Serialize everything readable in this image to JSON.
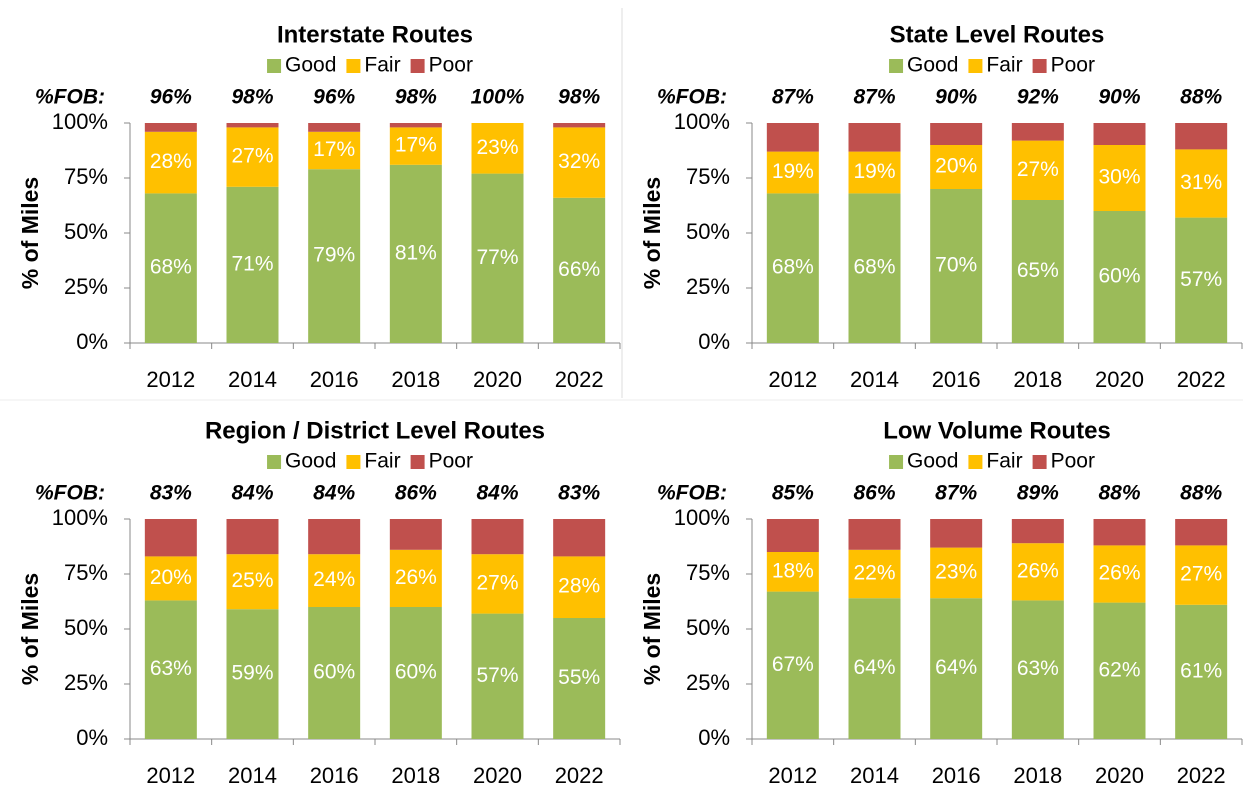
{
  "chart_data": [
    {
      "type": "bar",
      "stacked": true,
      "title": "Interstate Routes",
      "ylabel": "% of Miles",
      "categories": [
        "2012",
        "2014",
        "2016",
        "2018",
        "2020",
        "2022"
      ],
      "fob_label": "%FOB:",
      "fob_labels": [
        "96%",
        "98%",
        "96%",
        "98%",
        "100%",
        "98%"
      ],
      "series": [
        {
          "name": "Good",
          "color": "#9bbb59",
          "values": [
            68,
            71,
            79,
            81,
            77,
            66
          ],
          "value_labels": [
            "68%",
            "71%",
            "79%",
            "81%",
            "77%",
            "66%"
          ]
        },
        {
          "name": "Fair",
          "color": "#ffc000",
          "values": [
            28,
            27,
            17,
            17,
            23,
            32
          ],
          "value_labels": [
            "28%",
            "27%",
            "17%",
            "17%",
            "23%",
            "32%"
          ]
        },
        {
          "name": "Poor",
          "color": "#c0504d",
          "values": [
            4,
            2,
            4,
            2,
            0,
            2
          ]
        }
      ],
      "ylim": [
        0,
        100
      ],
      "yticks": [
        {
          "value": 0,
          "label": "0%"
        },
        {
          "value": 25,
          "label": "25%"
        },
        {
          "value": 50,
          "label": "50%"
        },
        {
          "value": 75,
          "label": "75%"
        },
        {
          "value": 100,
          "label": "100%"
        }
      ]
    },
    {
      "type": "bar",
      "stacked": true,
      "title": "State Level Routes",
      "ylabel": "% of Miles",
      "categories": [
        "2012",
        "2014",
        "2016",
        "2018",
        "2020",
        "2022"
      ],
      "fob_label": "%FOB:",
      "fob_labels": [
        "87%",
        "87%",
        "90%",
        "92%",
        "90%",
        "88%"
      ],
      "series": [
        {
          "name": "Good",
          "color": "#9bbb59",
          "values": [
            68,
            68,
            70,
            65,
            60,
            57
          ],
          "value_labels": [
            "68%",
            "68%",
            "70%",
            "65%",
            "60%",
            "57%"
          ]
        },
        {
          "name": "Fair",
          "color": "#ffc000",
          "values": [
            19,
            19,
            20,
            27,
            30,
            31
          ],
          "value_labels": [
            "19%",
            "19%",
            "20%",
            "27%",
            "30%",
            "31%"
          ]
        },
        {
          "name": "Poor",
          "color": "#c0504d",
          "values": [
            13,
            13,
            10,
            8,
            10,
            12
          ]
        }
      ],
      "ylim": [
        0,
        100
      ],
      "yticks": [
        {
          "value": 0,
          "label": "0%"
        },
        {
          "value": 25,
          "label": "25%"
        },
        {
          "value": 50,
          "label": "50%"
        },
        {
          "value": 75,
          "label": "75%"
        },
        {
          "value": 100,
          "label": "100%"
        }
      ]
    },
    {
      "type": "bar",
      "stacked": true,
      "title": "Region / District Level Routes",
      "ylabel": "% of Miles",
      "categories": [
        "2012",
        "2014",
        "2016",
        "2018",
        "2020",
        "2022"
      ],
      "fob_label": "%FOB:",
      "fob_labels": [
        "83%",
        "84%",
        "84%",
        "86%",
        "84%",
        "83%"
      ],
      "series": [
        {
          "name": "Good",
          "color": "#9bbb59",
          "values": [
            63,
            59,
            60,
            60,
            57,
            55
          ],
          "value_labels": [
            "63%",
            "59%",
            "60%",
            "60%",
            "57%",
            "55%"
          ]
        },
        {
          "name": "Fair",
          "color": "#ffc000",
          "values": [
            20,
            25,
            24,
            26,
            27,
            28
          ],
          "value_labels": [
            "20%",
            "25%",
            "24%",
            "26%",
            "27%",
            "28%"
          ]
        },
        {
          "name": "Poor",
          "color": "#c0504d",
          "values": [
            17,
            16,
            16,
            14,
            16,
            17
          ]
        }
      ],
      "ylim": [
        0,
        100
      ],
      "yticks": [
        {
          "value": 0,
          "label": "0%"
        },
        {
          "value": 25,
          "label": "25%"
        },
        {
          "value": 50,
          "label": "50%"
        },
        {
          "value": 75,
          "label": "75%"
        },
        {
          "value": 100,
          "label": "100%"
        }
      ]
    },
    {
      "type": "bar",
      "stacked": true,
      "title": "Low Volume Routes",
      "ylabel": "% of Miles",
      "categories": [
        "2012",
        "2014",
        "2016",
        "2018",
        "2020",
        "2022"
      ],
      "fob_label": "%FOB:",
      "fob_labels": [
        "85%",
        "86%",
        "87%",
        "89%",
        "88%",
        "88%"
      ],
      "series": [
        {
          "name": "Good",
          "color": "#9bbb59",
          "values": [
            67,
            64,
            64,
            63,
            62,
            61
          ],
          "value_labels": [
            "67%",
            "64%",
            "64%",
            "63%",
            "62%",
            "61%"
          ]
        },
        {
          "name": "Fair",
          "color": "#ffc000",
          "values": [
            18,
            22,
            23,
            26,
            26,
            27
          ],
          "value_labels": [
            "18%",
            "22%",
            "23%",
            "26%",
            "26%",
            "27%"
          ]
        },
        {
          "name": "Poor",
          "color": "#c0504d",
          "values": [
            15,
            14,
            13,
            11,
            12,
            12
          ]
        }
      ],
      "ylim": [
        0,
        100
      ],
      "yticks": [
        {
          "value": 0,
          "label": "0%"
        },
        {
          "value": 25,
          "label": "25%"
        },
        {
          "value": 50,
          "label": "50%"
        },
        {
          "value": 75,
          "label": "75%"
        },
        {
          "value": 100,
          "label": "100%"
        }
      ]
    }
  ]
}
